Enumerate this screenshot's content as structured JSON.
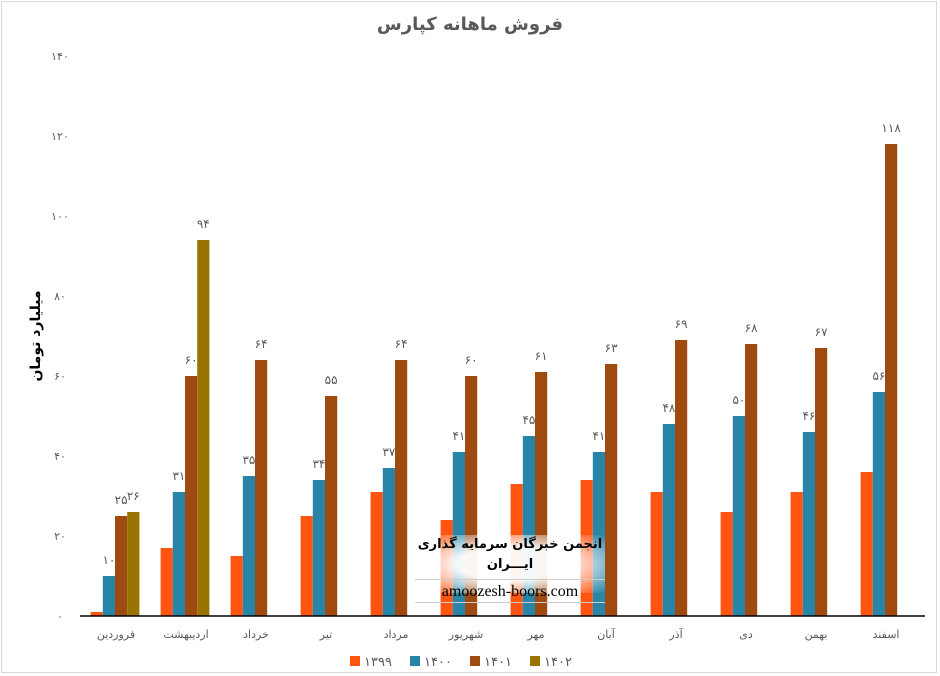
{
  "chart_data": {
    "type": "bar",
    "title": "فروش ماهانه کپارس",
    "ylabel": "میلیارد تومان",
    "xlabel": "",
    "ylim": [
      0,
      140
    ],
    "yticks": [
      0,
      20,
      40,
      60,
      80,
      100,
      120,
      140
    ],
    "ytick_labels": [
      "۰",
      "۲۰",
      "۴۰",
      "۶۰",
      "۸۰",
      "۱۰۰",
      "۱۲۰",
      "۱۴۰"
    ],
    "grid": false,
    "legend_position": "bottom",
    "categories": [
      "فروردین",
      "اردیبهشت",
      "خرداد",
      "تیر",
      "مرداد",
      "شهریور",
      "مهر",
      "آبان",
      "آذر",
      "دی",
      "بهمن",
      "اسفند"
    ],
    "series": [
      {
        "name": "۱۳۹۹",
        "color": "#FF5511",
        "show_labels": false,
        "values": [
          1,
          17,
          15,
          25,
          31,
          24,
          33,
          34,
          31,
          26,
          31,
          36
        ]
      },
      {
        "name": "۱۴۰۰",
        "color": "#2885A8",
        "show_labels": true,
        "values": [
          10,
          31,
          35,
          34,
          37,
          41,
          45,
          41,
          48,
          50,
          46,
          56
        ],
        "labels": [
          "۱۰",
          "۳۱",
          "۳۵",
          "۳۴",
          "۳۷",
          "۴۱",
          "۴۵",
          "۴۱",
          "۴۸",
          "۵۰",
          "۴۶",
          "۵۶"
        ]
      },
      {
        "name": "۱۴۰۱",
        "color": "#9E4A10",
        "show_labels": true,
        "values": [
          25,
          60,
          64,
          55,
          64,
          60,
          61,
          63,
          69,
          68,
          67,
          118
        ],
        "labels": [
          "۲۵",
          "۶۰",
          "۶۴",
          "۵۵",
          "۶۴",
          "۶۰",
          "۶۱",
          "۶۳",
          "۶۹",
          "۶۸",
          "۶۷",
          "۱۱۸"
        ]
      },
      {
        "name": "۱۴۰۲",
        "color": "#9A7400",
        "show_labels": true,
        "values": [
          26,
          94,
          null,
          null,
          null,
          null,
          null,
          null,
          null,
          null,
          null,
          null
        ],
        "labels": [
          "۲۶",
          "۹۴",
          "",
          "",
          "",
          "",
          "",
          "",
          "",
          "",
          "",
          ""
        ]
      }
    ]
  },
  "watermark": {
    "fa": "انجمن خبرگان سرمایه گذاری ایـــران",
    "en": "amoozesh-boors.com"
  }
}
